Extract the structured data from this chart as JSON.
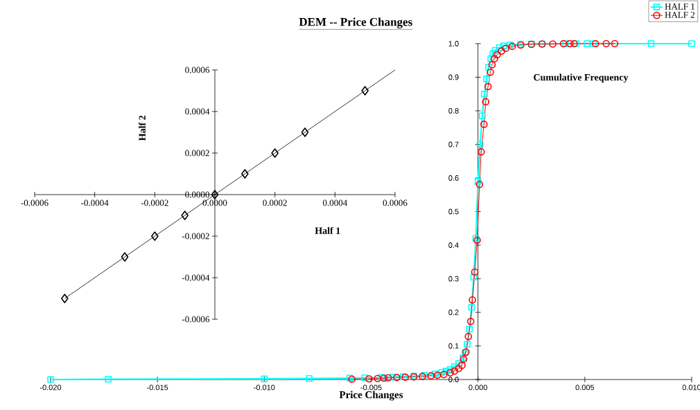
{
  "chart_data": [
    {
      "type": "line",
      "title": "DEM -- Price Changes",
      "xlabel": "Price Changes",
      "annotations": [
        "Cumulative Frequency"
      ],
      "xlim": [
        -0.02,
        0.01
      ],
      "ylim": [
        0,
        1
      ],
      "xticks": [
        {
          "value": -0.02,
          "label": "-0.020"
        },
        {
          "value": -0.015,
          "label": "-0.015"
        },
        {
          "value": -0.01,
          "label": "-0.010"
        },
        {
          "value": -0.005,
          "label": "-0.005"
        },
        {
          "value": 0,
          "label": "0.000"
        },
        {
          "value": 0.005,
          "label": "0.005"
        },
        {
          "value": 0.01,
          "label": "0.010"
        }
      ],
      "yticks": [
        {
          "value": 0,
          "label": "0.0"
        },
        {
          "value": 0.1,
          "label": "0.1"
        },
        {
          "value": 0.2,
          "label": "0.2"
        },
        {
          "value": 0.3,
          "label": "0.3"
        },
        {
          "value": 0.4,
          "label": "0.4"
        },
        {
          "value": 0.5,
          "label": "0.5"
        },
        {
          "value": 0.6,
          "label": "0.6"
        },
        {
          "value": 0.7,
          "label": "0.7"
        },
        {
          "value": 0.8,
          "label": "0.8"
        },
        {
          "value": 0.9,
          "label": "0.9"
        },
        {
          "value": 1,
          "label": "1.0"
        }
      ],
      "legend": "top right",
      "series": [
        {
          "name": "HALF 1",
          "color": "#00ffff",
          "marker": "square",
          "x": [
            -0.02,
            -0.0173,
            -0.01,
            -0.0079,
            -0.006,
            -0.0053,
            -0.0045,
            -0.004,
            -0.0035,
            -0.003,
            -0.0025,
            -0.002,
            -0.0017,
            -0.0015,
            -0.0013,
            -0.0011,
            -0.0009,
            -0.0007,
            -0.0006,
            -0.0005,
            -0.0004,
            -0.0003,
            -0.0002,
            -0.0001,
            0.0,
            0.0001,
            0.0002,
            0.0003,
            0.0004,
            0.0005,
            0.0006,
            0.0007,
            0.0008,
            0.001,
            0.0012,
            0.0015,
            0.002,
            0.0025,
            0.003,
            0.0041,
            0.0046,
            0.0051,
            0.0054,
            0.0081,
            0.01
          ],
          "values": [
            0.0,
            0.001,
            0.002,
            0.003,
            0.004,
            0.005,
            0.006,
            0.007,
            0.008,
            0.01,
            0.013,
            0.017,
            0.021,
            0.025,
            0.03,
            0.038,
            0.048,
            0.065,
            0.08,
            0.105,
            0.15,
            0.215,
            0.305,
            0.42,
            0.59,
            0.7,
            0.785,
            0.85,
            0.895,
            0.93,
            0.955,
            0.97,
            0.98,
            0.988,
            0.993,
            0.996,
            0.998,
            0.999,
            0.999,
            1.0,
            1.0,
            1.0,
            1.0,
            1.0,
            1.0
          ]
        },
        {
          "name": "HALF 2",
          "color": "#ff0000",
          "marker": "circle",
          "x": [
            -0.0059,
            -0.0051,
            -0.0047,
            -0.0044,
            -0.0042,
            -0.0038,
            -0.0034,
            -0.003,
            -0.0026,
            -0.0022,
            -0.0019,
            -0.0016,
            -0.0013,
            -0.0011,
            -0.0009,
            -0.00075,
            -0.00067,
            -0.00056,
            -0.00045,
            -0.00034,
            -0.00026,
            -0.00015,
            -4e-05,
            7e-05,
            0.00015,
            0.00028,
            0.00036,
            0.00047,
            0.00058,
            0.00066,
            0.00077,
            0.0009,
            0.0011,
            0.0013,
            0.0016,
            0.002,
            0.0025,
            0.003,
            0.0035,
            0.004,
            0.0043,
            0.0045,
            0.0055,
            0.006,
            0.0064
          ],
          "values": [
            0.001,
            0.002,
            0.003,
            0.004,
            0.005,
            0.006,
            0.007,
            0.008,
            0.009,
            0.011,
            0.013,
            0.015,
            0.02,
            0.025,
            0.033,
            0.042,
            0.061,
            0.082,
            0.128,
            0.173,
            0.237,
            0.32,
            0.415,
            0.581,
            0.678,
            0.76,
            0.827,
            0.872,
            0.915,
            0.937,
            0.955,
            0.967,
            0.978,
            0.986,
            0.992,
            0.996,
            0.998,
            0.999,
            0.999,
            1.0,
            1.0,
            1.0,
            1.0,
            1.0,
            1.0
          ]
        }
      ]
    },
    {
      "type": "scatter",
      "xlabel": "Half 1",
      "ylabel": "Half 2",
      "xlim": [
        -0.0006,
        0.0006
      ],
      "ylim": [
        -0.0006,
        0.0006
      ],
      "xticks": [
        {
          "value": -0.0006,
          "label": "-0.0006"
        },
        {
          "value": -0.0004,
          "label": "-0.0004"
        },
        {
          "value": -0.0002,
          "label": "-0.0002"
        },
        {
          "value": 0,
          "label": "0.0000"
        },
        {
          "value": 0.0002,
          "label": "0.0002"
        },
        {
          "value": 0.0004,
          "label": "0.0004"
        },
        {
          "value": 0.0006,
          "label": "0.0006"
        }
      ],
      "yticks": [
        {
          "value": -0.0006,
          "label": "-0.0006"
        },
        {
          "value": -0.0004,
          "label": "-0.0004"
        },
        {
          "value": -0.0002,
          "label": "-0.0002"
        },
        {
          "value": 0,
          "label": "0.0000"
        },
        {
          "value": 0.0002,
          "label": "0.0002"
        },
        {
          "value": 0.0004,
          "label": "0.0004"
        },
        {
          "value": 0.0006,
          "label": "0.0006"
        }
      ],
      "series": [
        {
          "type": "line",
          "color": "#000000",
          "marker": "none",
          "x": [
            -0.0005,
            0.0006
          ],
          "values": [
            -0.0005,
            0.0006
          ]
        },
        {
          "type": "scatter",
          "color": "#000000",
          "marker": "diamond",
          "x": [
            -0.0005,
            -0.0003,
            -0.0002,
            -0.0001,
            0.0,
            0.0001,
            0.0002,
            0.0003,
            0.0005
          ],
          "values": [
            -0.0005,
            -0.0003,
            -0.0002,
            -0.0001,
            0.0,
            0.0001,
            0.0002,
            0.0003,
            0.0005
          ]
        }
      ]
    }
  ]
}
